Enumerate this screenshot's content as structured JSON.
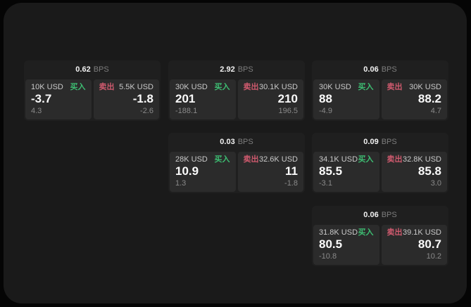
{
  "labels": {
    "bps_unit": "BPS",
    "buy": "买入",
    "sell": "卖出"
  },
  "colors": {
    "buy_green": "#3dbd72",
    "sell_red": "#cf5a6e",
    "surface": "#1a1a1a",
    "card": "#1f1f1f",
    "panel": "#2b2b2b"
  },
  "cards": [
    {
      "bps": "0.62",
      "buy": {
        "amount": "10K USD",
        "price": "-3.7",
        "delta": "4.3"
      },
      "sell": {
        "amount": "5.5K USD",
        "price": "-1.8",
        "delta": "-2.6"
      }
    },
    {
      "bps": "2.92",
      "buy": {
        "amount": "30K USD",
        "price": "201",
        "delta": "-188.1"
      },
      "sell": {
        "amount": "30.1K USD",
        "price": "210",
        "delta": "196.5"
      }
    },
    {
      "bps": "0.06",
      "buy": {
        "amount": "30K USD",
        "price": "88",
        "delta": "-4.9"
      },
      "sell": {
        "amount": "30K USD",
        "price": "88.2",
        "delta": "4.7"
      }
    },
    {
      "bps": "0.03",
      "buy": {
        "amount": "28K USD",
        "price": "10.9",
        "delta": "1.3"
      },
      "sell": {
        "amount": "32.6K USD",
        "price": "11",
        "delta": "-1.8"
      }
    },
    {
      "bps": "0.09",
      "buy": {
        "amount": "34.1K USD",
        "price": "85.5",
        "delta": "-3.1"
      },
      "sell": {
        "amount": "32.8K USD",
        "price": "85.8",
        "delta": "3.0"
      }
    },
    {
      "bps": "0.06",
      "buy": {
        "amount": "31.8K USD",
        "price": "80.5",
        "delta": "-10.8"
      },
      "sell": {
        "amount": "39.1K USD",
        "price": "80.7",
        "delta": "10.2"
      }
    }
  ]
}
